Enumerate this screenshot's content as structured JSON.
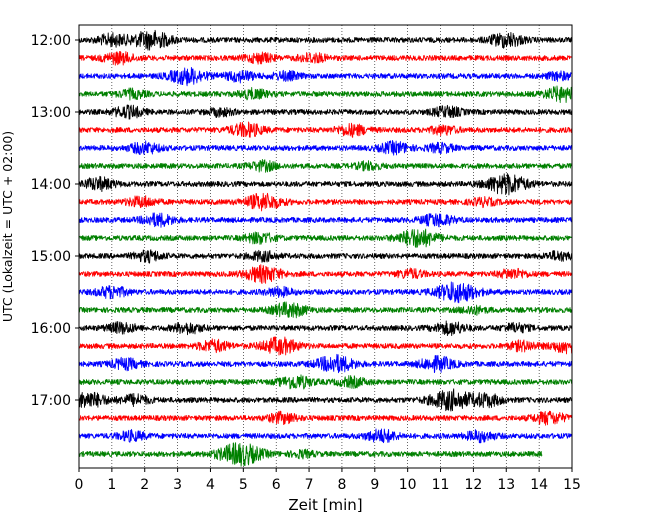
{
  "chart_data": {
    "type": "line",
    "title": "",
    "xlabel": "Zeit  [min]",
    "ylabel": "UTC (Lokalzeit = UTC + 02:00)",
    "xlim": [
      0,
      15
    ],
    "x_ticks": [
      0,
      1,
      2,
      3,
      4,
      5,
      6,
      7,
      8,
      9,
      10,
      11,
      12,
      13,
      14,
      15
    ],
    "x_tick_labels": [
      "0",
      "1",
      "2",
      "3",
      "4",
      "5",
      "6",
      "7",
      "8",
      "9",
      "10",
      "11",
      "12",
      "13",
      "14",
      "15"
    ],
    "y_tick_labels": [
      "12:00",
      "13:00",
      "14:00",
      "15:00",
      "16:00",
      "17:00"
    ],
    "minutes_per_trace": 15,
    "grid": "vertical dotted at each minute",
    "trace_colors": [
      "#000000",
      "#ff0000",
      "#0000ff",
      "#008000"
    ],
    "traces": [
      {
        "start": "12:00",
        "color": "#000000",
        "bursts": [
          {
            "t": 1.0,
            "a": 0.55
          },
          {
            "t": 2.2,
            "a": 0.9
          },
          {
            "t": 13.0,
            "a": 0.7
          }
        ]
      },
      {
        "start": "12:15",
        "color": "#ff0000",
        "bursts": [
          {
            "t": 1.2,
            "a": 0.55
          },
          {
            "t": 5.5,
            "a": 0.45
          },
          {
            "t": 7.1,
            "a": 0.45
          }
        ]
      },
      {
        "start": "12:30",
        "color": "#0000ff",
        "bursts": [
          {
            "t": 3.3,
            "a": 0.8
          },
          {
            "t": 4.9,
            "a": 0.5
          },
          {
            "t": 6.3,
            "a": 0.4
          },
          {
            "t": 14.6,
            "a": 0.35
          }
        ]
      },
      {
        "start": "12:45",
        "color": "#008000",
        "bursts": [
          {
            "t": 1.6,
            "a": 0.4
          },
          {
            "t": 5.3,
            "a": 0.45
          },
          {
            "t": 14.7,
            "a": 0.7
          }
        ]
      },
      {
        "start": "13:00",
        "color": "#000000",
        "bursts": [
          {
            "t": 1.5,
            "a": 0.55
          },
          {
            "t": 4.3,
            "a": 0.35
          },
          {
            "t": 11.2,
            "a": 0.5
          }
        ]
      },
      {
        "start": "13:15",
        "color": "#ff0000",
        "bursts": [
          {
            "t": 5.1,
            "a": 0.65
          },
          {
            "t": 8.3,
            "a": 0.55
          },
          {
            "t": 11.1,
            "a": 0.4
          }
        ]
      },
      {
        "start": "13:30",
        "color": "#0000ff",
        "bursts": [
          {
            "t": 2.0,
            "a": 0.55
          },
          {
            "t": 9.6,
            "a": 0.55
          },
          {
            "t": 11.0,
            "a": 0.4
          }
        ]
      },
      {
        "start": "13:45",
        "color": "#008000",
        "bursts": [
          {
            "t": 5.6,
            "a": 0.45
          },
          {
            "t": 8.8,
            "a": 0.35
          }
        ]
      },
      {
        "start": "14:00",
        "color": "#000000",
        "bursts": [
          {
            "t": 0.6,
            "a": 0.6
          },
          {
            "t": 13.0,
            "a": 1.0
          }
        ]
      },
      {
        "start": "14:15",
        "color": "#ff0000",
        "bursts": [
          {
            "t": 1.9,
            "a": 0.5
          },
          {
            "t": 5.6,
            "a": 0.8
          },
          {
            "t": 12.3,
            "a": 0.35
          }
        ]
      },
      {
        "start": "14:30",
        "color": "#0000ff",
        "bursts": [
          {
            "t": 2.4,
            "a": 0.6
          },
          {
            "t": 10.9,
            "a": 0.6
          }
        ]
      },
      {
        "start": "14:45",
        "color": "#008000",
        "bursts": [
          {
            "t": 5.5,
            "a": 0.5
          },
          {
            "t": 10.3,
            "a": 0.9
          }
        ]
      },
      {
        "start": "15:00",
        "color": "#000000",
        "bursts": [
          {
            "t": 2.1,
            "a": 0.5
          },
          {
            "t": 5.6,
            "a": 0.45
          },
          {
            "t": 14.6,
            "a": 0.4
          }
        ]
      },
      {
        "start": "15:15",
        "color": "#ff0000",
        "bursts": [
          {
            "t": 5.6,
            "a": 0.8
          },
          {
            "t": 10.1,
            "a": 0.4
          },
          {
            "t": 13.2,
            "a": 0.45
          }
        ]
      },
      {
        "start": "15:30",
        "color": "#0000ff",
        "bursts": [
          {
            "t": 1.0,
            "a": 0.55
          },
          {
            "t": 6.1,
            "a": 0.4
          },
          {
            "t": 11.5,
            "a": 1.0
          }
        ]
      },
      {
        "start": "15:45",
        "color": "#008000",
        "bursts": [
          {
            "t": 6.4,
            "a": 0.7
          },
          {
            "t": 12.0,
            "a": 0.35
          }
        ]
      },
      {
        "start": "16:00",
        "color": "#000000",
        "bursts": [
          {
            "t": 1.3,
            "a": 0.5
          },
          {
            "t": 3.3,
            "a": 0.5
          },
          {
            "t": 11.3,
            "a": 0.6
          },
          {
            "t": 13.3,
            "a": 0.4
          }
        ]
      },
      {
        "start": "16:15",
        "color": "#ff0000",
        "bursts": [
          {
            "t": 4.1,
            "a": 0.55
          },
          {
            "t": 6.1,
            "a": 0.8
          },
          {
            "t": 13.5,
            "a": 0.45
          },
          {
            "t": 14.9,
            "a": 0.7
          }
        ]
      },
      {
        "start": "16:30",
        "color": "#0000ff",
        "bursts": [
          {
            "t": 1.4,
            "a": 0.5
          },
          {
            "t": 7.8,
            "a": 0.85
          },
          {
            "t": 10.9,
            "a": 0.7
          }
        ]
      },
      {
        "start": "16:45",
        "color": "#008000",
        "bursts": [
          {
            "t": 6.6,
            "a": 0.65
          },
          {
            "t": 8.3,
            "a": 0.45
          }
        ]
      },
      {
        "start": "17:00",
        "color": "#000000",
        "bursts": [
          {
            "t": 0.3,
            "a": 0.75
          },
          {
            "t": 1.7,
            "a": 0.5
          },
          {
            "t": 11.3,
            "a": 1.0
          },
          {
            "t": 12.4,
            "a": 0.6
          }
        ]
      },
      {
        "start": "17:15",
        "color": "#ff0000",
        "bursts": [
          {
            "t": 6.2,
            "a": 0.5
          },
          {
            "t": 14.3,
            "a": 0.6
          }
        ]
      },
      {
        "start": "17:30",
        "color": "#0000ff",
        "bursts": [
          {
            "t": 1.6,
            "a": 0.45
          },
          {
            "t": 9.2,
            "a": 0.6
          },
          {
            "t": 12.2,
            "a": 0.5
          }
        ]
      },
      {
        "start": "17:45",
        "color": "#008000",
        "bursts": [
          {
            "t": 4.9,
            "a": 1.1
          },
          {
            "t": 6.8,
            "a": 0.3
          }
        ],
        "end": 14.1
      }
    ]
  }
}
